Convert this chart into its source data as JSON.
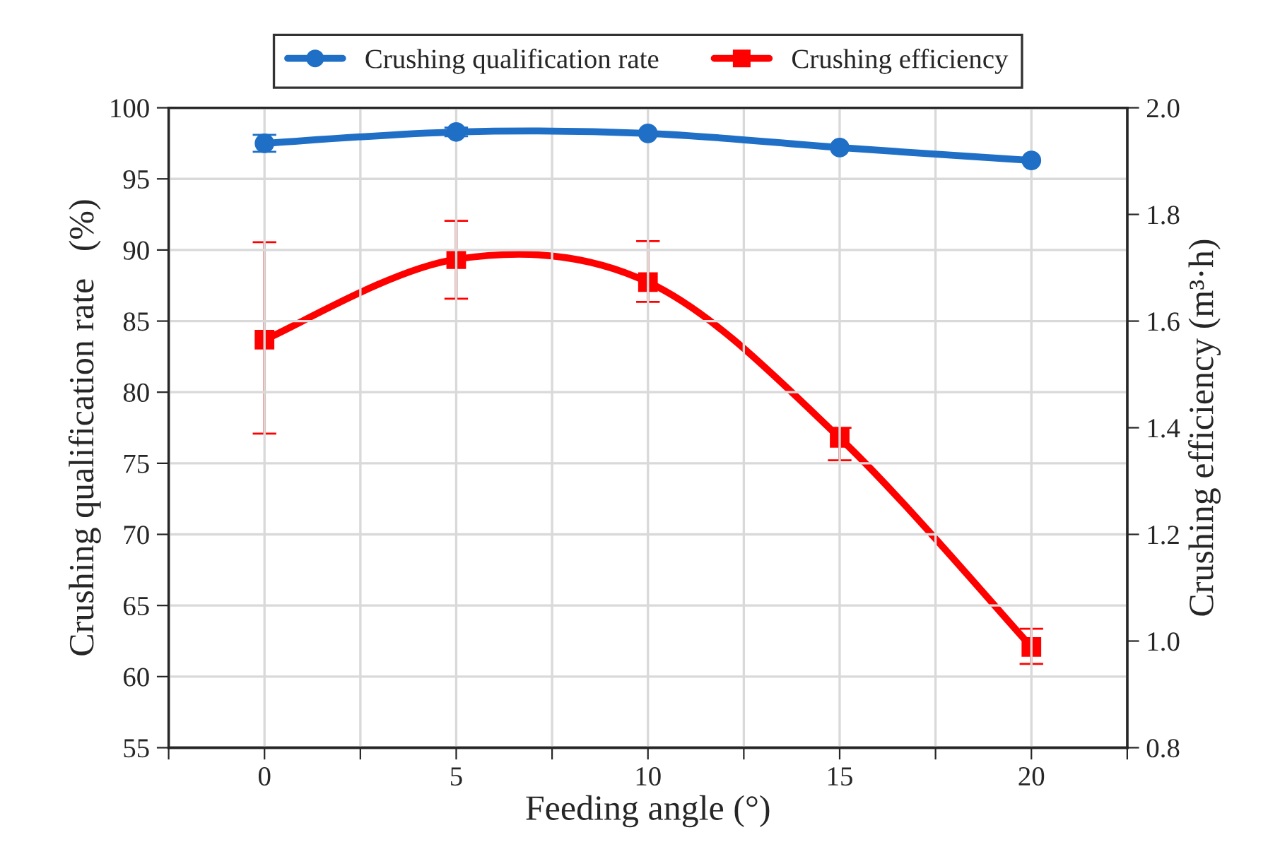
{
  "chart_data": {
    "type": "line",
    "xlabel": "Feeding angle (°)",
    "ylabel": "Crushing qualification rate   (%)",
    "y2label": "Crushing efficiency (m³·h)",
    "x": [
      0,
      5,
      10,
      15,
      20
    ],
    "series": [
      {
        "name": "Crushing qualification rate",
        "color": "#1f6fc6",
        "marker": "circle",
        "values": [
          97.5,
          98.3,
          98.2,
          97.2,
          96.3
        ],
        "errors": [
          0.6,
          0.3,
          null,
          null,
          null
        ]
      },
      {
        "name": "Crushing efficiency",
        "color": "#ff0000",
        "marker": "square",
        "axis": "y2",
        "values": [
          1.565,
          1.716,
          1.673,
          1.381,
          0.989
        ],
        "errors": [
          [
            1.389,
            1.748
          ],
          [
            1.642,
            1.788
          ],
          [
            1.636,
            1.75
          ],
          [
            1.339,
            1.4
          ],
          [
            0.957,
            1.023
          ]
        ]
      }
    ],
    "xlim": [
      -2.5,
      22.5
    ],
    "xticks": [
      {
        "value": -2.5,
        "label": null
      },
      0,
      {
        "value": 2.5,
        "label": null
      },
      5,
      {
        "value": 7.5,
        "label": null
      },
      10,
      {
        "value": 12.5,
        "label": null
      },
      15,
      {
        "value": 17.5,
        "label": null
      },
      20,
      {
        "value": 22.5,
        "label": null
      }
    ],
    "ylim": [
      55,
      100
    ],
    "yticks": [
      55,
      60,
      65,
      70,
      75,
      80,
      85,
      90,
      95,
      100
    ],
    "y2lim": [
      0.8,
      2.0
    ],
    "y2ticks": [
      {
        "value": 0.8,
        "label": "0.8"
      },
      {
        "value": 1.0,
        "label": "1.0"
      },
      {
        "value": 1.2,
        "label": "1.2"
      },
      {
        "value": 1.4,
        "label": "1.4"
      },
      {
        "value": 1.6,
        "label": "1.6"
      },
      {
        "value": 1.8,
        "label": "1.8"
      },
      {
        "value": 2.0,
        "label": "2.0"
      }
    ],
    "grid": true,
    "legend": "top",
    "line_style": "solid"
  }
}
